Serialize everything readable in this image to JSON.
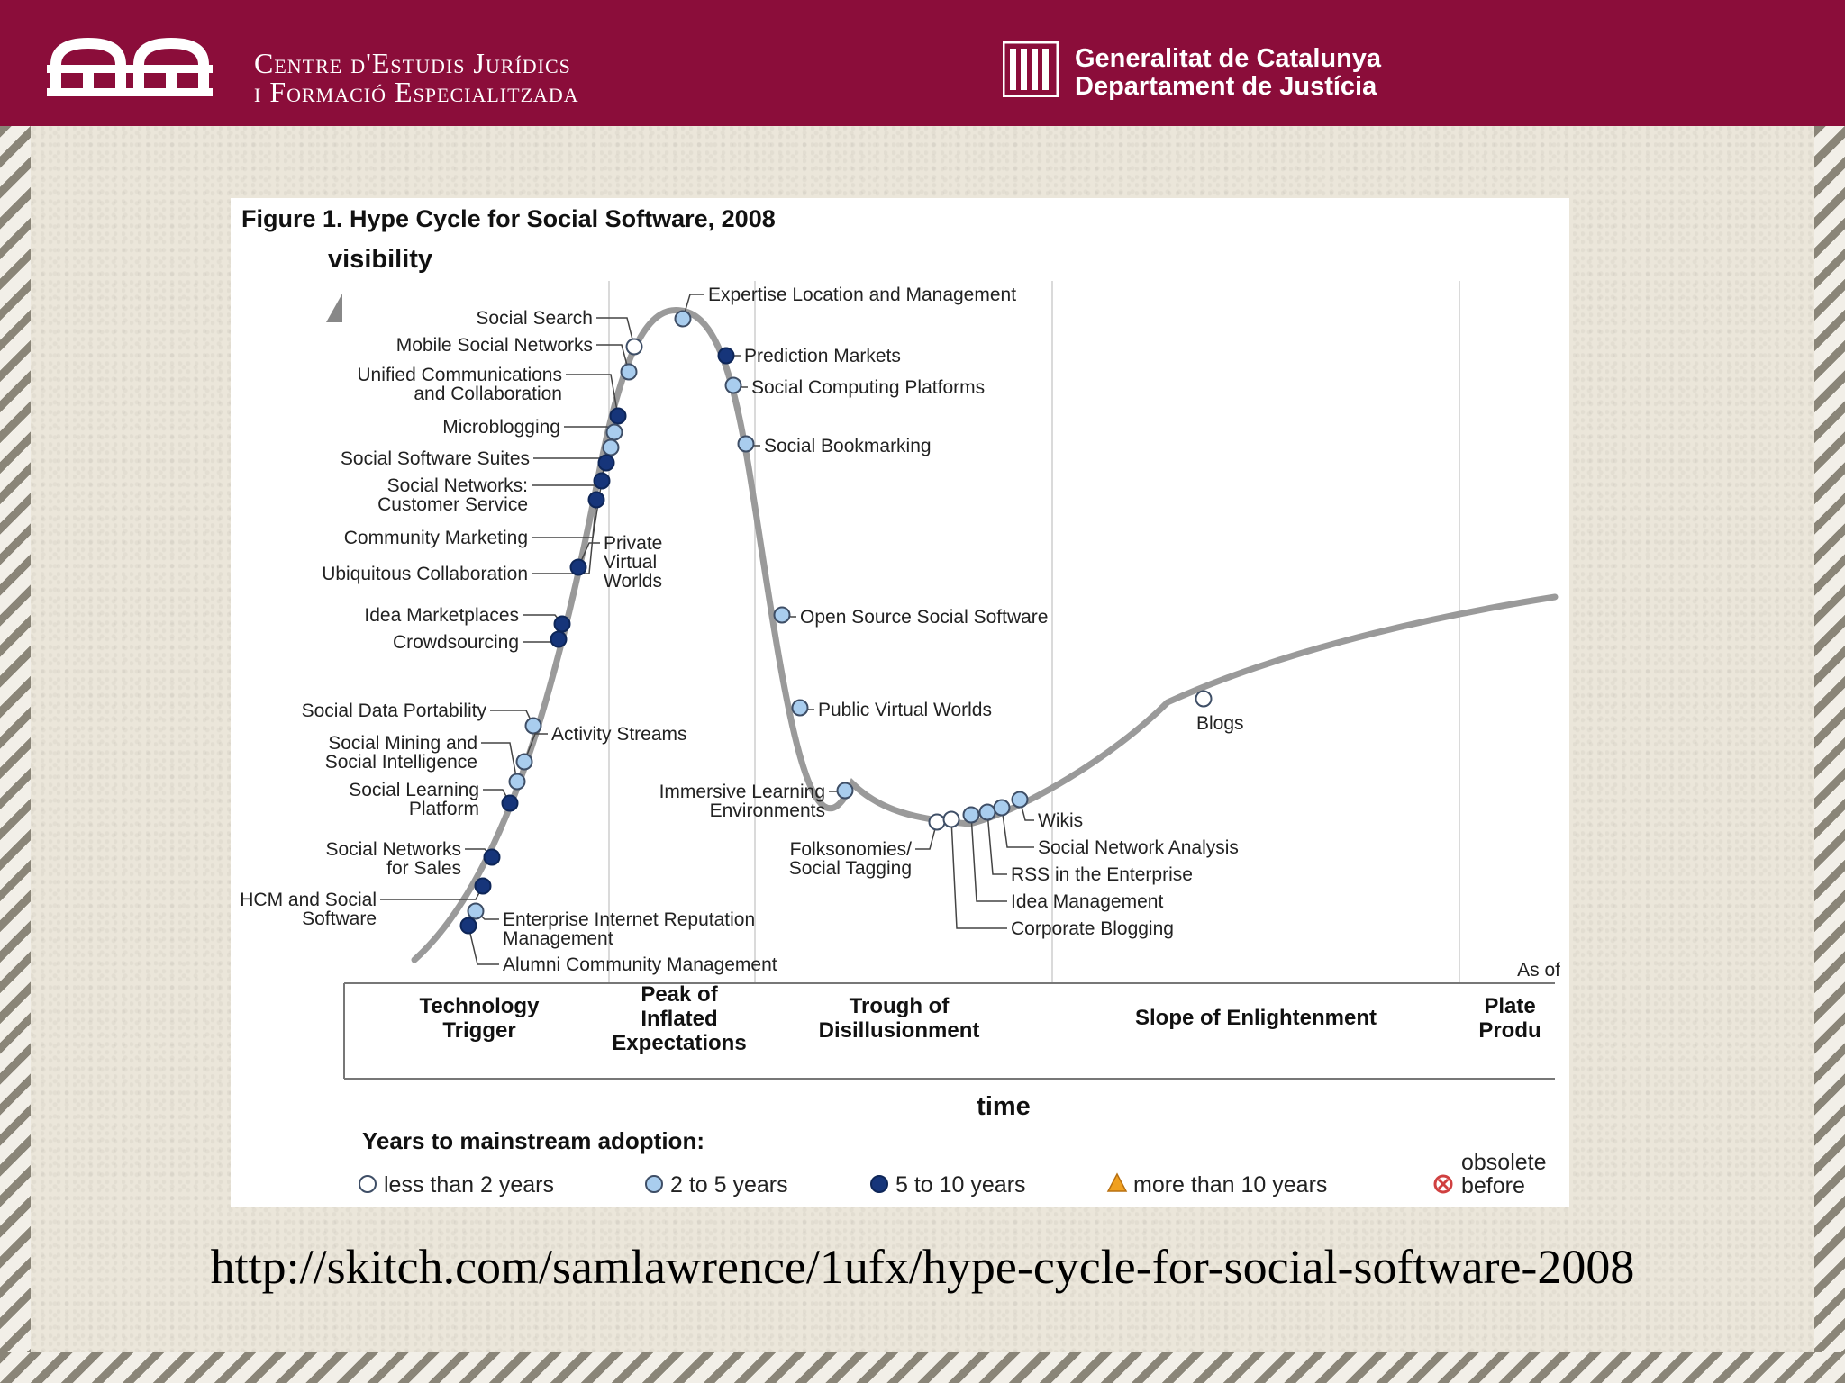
{
  "header": {
    "center_line1": "Centre d'Estudis Jurídics",
    "center_line2": "i Formació Especialitzada",
    "gov_line1": "Generalitat de Catalunya",
    "gov_line2": "Departament de Justícia",
    "colors": {
      "header_bg": "#8b0d3a",
      "header_text": "#ffffff"
    }
  },
  "caption": {
    "url_text": "http://skitch.com/samlawrence/1ufx/hype-cycle-for-social-software-2008"
  },
  "chart_data": {
    "type": "line",
    "title": "Figure 1. Hype Cycle for Social Software, 2008",
    "ylabel": "visibility",
    "xlabel": "time",
    "phases": [
      {
        "label": [
          "Technology",
          "Trigger"
        ]
      },
      {
        "label": [
          "Peak of",
          "Inflated",
          "Expectations"
        ]
      },
      {
        "label": [
          "Trough of",
          "Disillusionment"
        ]
      },
      {
        "label": [
          "Slope of Enlightenment"
        ]
      },
      {
        "label": [
          "Plate",
          "Produ"
        ]
      }
    ],
    "corner_label": "As of",
    "legend_title": "Years to mainstream adoption:",
    "legend": [
      {
        "key": "lt2",
        "symbol": "open-circle",
        "label": "less than 2 years",
        "color": "#ffffff"
      },
      {
        "key": "2to5",
        "symbol": "circle",
        "label": "2 to 5 years",
        "color": "#a9cdee"
      },
      {
        "key": "5to10",
        "symbol": "circle",
        "label": "5 to 10 years",
        "color": "#16357a"
      },
      {
        "key": "gt10",
        "symbol": "triangle",
        "label": "more than 10 years",
        "color": "#f0a020"
      },
      {
        "key": "obs",
        "symbol": "cross-circle",
        "label": [
          "obsolete",
          "before"
        ],
        "color": "#d04040"
      }
    ],
    "technologies": [
      {
        "name": [
          "Social Search"
        ],
        "category": "lt2"
      },
      {
        "name": [
          "Mobile Social Networks"
        ],
        "category": "2to5"
      },
      {
        "name": [
          "Unified Communications",
          "and Collaboration"
        ],
        "category": "5to10"
      },
      {
        "name": [
          "Microblogging"
        ],
        "category": "2to5"
      },
      {
        "name": [
          "Social Software Suites"
        ],
        "category": "2to5"
      },
      {
        "name": [
          "Social Networks:",
          "Customer Service"
        ],
        "category": "5to10"
      },
      {
        "name": [
          "Community Marketing"
        ],
        "category": "5to10"
      },
      {
        "name": [
          "Ubiquitous Collaboration"
        ],
        "category": "5to10"
      },
      {
        "name": [
          "Private",
          "Virtual",
          "Worlds"
        ],
        "category": "5to10"
      },
      {
        "name": [
          "Idea Marketplaces"
        ],
        "category": "5to10"
      },
      {
        "name": [
          "Crowdsourcing"
        ],
        "category": "5to10"
      },
      {
        "name": [
          "Social Data Portability"
        ],
        "category": "2to5"
      },
      {
        "name": [
          "Activity Streams"
        ],
        "category": "2to5"
      },
      {
        "name": [
          "Social Mining and",
          "Social Intelligence"
        ],
        "category": "2to5"
      },
      {
        "name": [
          "Social Learning",
          "Platform"
        ],
        "category": "5to10"
      },
      {
        "name": [
          "Social Networks",
          "for Sales"
        ],
        "category": "5to10"
      },
      {
        "name": [
          "HCM and Social",
          "Software"
        ],
        "category": "5to10"
      },
      {
        "name": [
          "Enterprise Internet Reputation",
          "Management"
        ],
        "category": "2to5"
      },
      {
        "name": [
          "Alumni Community Management"
        ],
        "category": "5to10"
      },
      {
        "name": [
          "Expertise Location and Management"
        ],
        "category": "2to5"
      },
      {
        "name": [
          "Prediction Markets"
        ],
        "category": "5to10"
      },
      {
        "name": [
          "Social Computing Platforms"
        ],
        "category": "2to5"
      },
      {
        "name": [
          "Social Bookmarking"
        ],
        "category": "2to5"
      },
      {
        "name": [
          "Open Source Social Software"
        ],
        "category": "2to5"
      },
      {
        "name": [
          "Public Virtual Worlds"
        ],
        "category": "2to5"
      },
      {
        "name": [
          "Immersive Learning",
          "Environments"
        ],
        "category": "2to5"
      },
      {
        "name": [
          "Folksonomies/",
          "Social Tagging"
        ],
        "category": "lt2"
      },
      {
        "name": [
          "Corporate Blogging"
        ],
        "category": "lt2"
      },
      {
        "name": [
          "Idea Management"
        ],
        "category": "2to5"
      },
      {
        "name": [
          "RSS in the Enterprise"
        ],
        "category": "2to5"
      },
      {
        "name": [
          "Social Network Analysis"
        ],
        "category": "2to5"
      },
      {
        "name": [
          "Wikis"
        ],
        "category": "2to5"
      },
      {
        "name": [
          "Blogs"
        ],
        "category": "lt2"
      }
    ]
  }
}
